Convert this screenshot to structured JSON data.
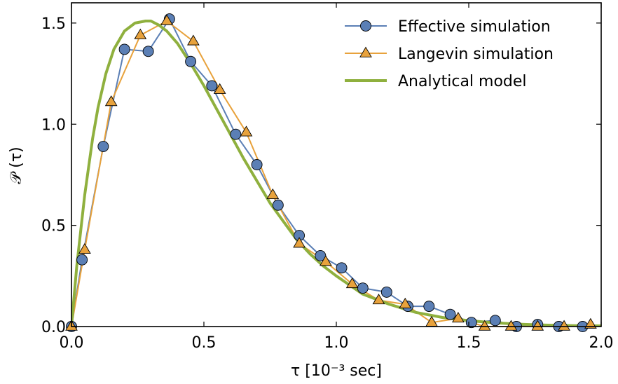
{
  "chart_data": {
    "type": "line",
    "xlabel": "τ  [10⁻³ sec]",
    "ylabel": "𝒫 (τ)",
    "xlim": [
      0.0,
      2.0
    ],
    "ylim": [
      0.0,
      1.6
    ],
    "xticks": [
      "0.0",
      "0.5",
      "1.0",
      "1.5",
      "2.0"
    ],
    "yticks": [
      "0.0",
      "0.5",
      "1.0",
      "1.5"
    ],
    "xtick_values": [
      0.0,
      0.5,
      1.0,
      1.5,
      2.0
    ],
    "ytick_values": [
      0.0,
      0.5,
      1.0,
      1.5
    ],
    "legend_position": "top-right",
    "series": [
      {
        "name": "Effective simulation",
        "marker": "circle",
        "color": "#5b7fb5",
        "x": [
          0.0,
          0.04,
          0.12,
          0.2,
          0.29,
          0.37,
          0.45,
          0.53,
          0.62,
          0.7,
          0.78,
          0.86,
          0.94,
          1.02,
          1.1,
          1.19,
          1.27,
          1.35,
          1.43,
          1.51,
          1.6,
          1.68,
          1.76,
          1.84,
          1.93
        ],
        "y": [
          0.0,
          0.33,
          0.89,
          1.37,
          1.36,
          1.52,
          1.31,
          1.19,
          0.95,
          0.8,
          0.6,
          0.45,
          0.35,
          0.29,
          0.19,
          0.17,
          0.1,
          0.1,
          0.06,
          0.02,
          0.03,
          0.0,
          0.01,
          0.0,
          0.0
        ]
      },
      {
        "name": "Langevin simulation",
        "marker": "triangle",
        "color": "#e8a23c",
        "x": [
          0.0,
          0.05,
          0.15,
          0.26,
          0.36,
          0.46,
          0.56,
          0.66,
          0.76,
          0.86,
          0.96,
          1.06,
          1.16,
          1.26,
          1.36,
          1.46,
          1.56,
          1.66,
          1.76,
          1.86,
          1.96
        ],
        "y": [
          0.0,
          0.38,
          1.11,
          1.44,
          1.51,
          1.41,
          1.17,
          0.96,
          0.65,
          0.41,
          0.32,
          0.21,
          0.13,
          0.11,
          0.02,
          0.04,
          0.0,
          0.0,
          0.0,
          0.0,
          0.01
        ]
      },
      {
        "name": "Analytical model",
        "marker": "none",
        "color": "#8fb03e",
        "x": [
          0.0,
          0.02,
          0.05,
          0.08,
          0.1,
          0.13,
          0.16,
          0.2,
          0.24,
          0.28,
          0.3,
          0.33,
          0.36,
          0.4,
          0.45,
          0.5,
          0.55,
          0.6,
          0.65,
          0.7,
          0.75,
          0.8,
          0.85,
          0.9,
          0.95,
          1.0,
          1.1,
          1.2,
          1.3,
          1.4,
          1.5,
          1.6,
          1.7,
          1.8,
          1.9,
          2.0
        ],
        "y": [
          0.0,
          0.3,
          0.65,
          0.93,
          1.08,
          1.25,
          1.37,
          1.46,
          1.5,
          1.51,
          1.51,
          1.49,
          1.46,
          1.4,
          1.3,
          1.19,
          1.07,
          0.95,
          0.83,
          0.72,
          0.61,
          0.52,
          0.43,
          0.36,
          0.3,
          0.25,
          0.16,
          0.11,
          0.07,
          0.045,
          0.029,
          0.018,
          0.011,
          0.007,
          0.004,
          0.003
        ]
      }
    ]
  }
}
